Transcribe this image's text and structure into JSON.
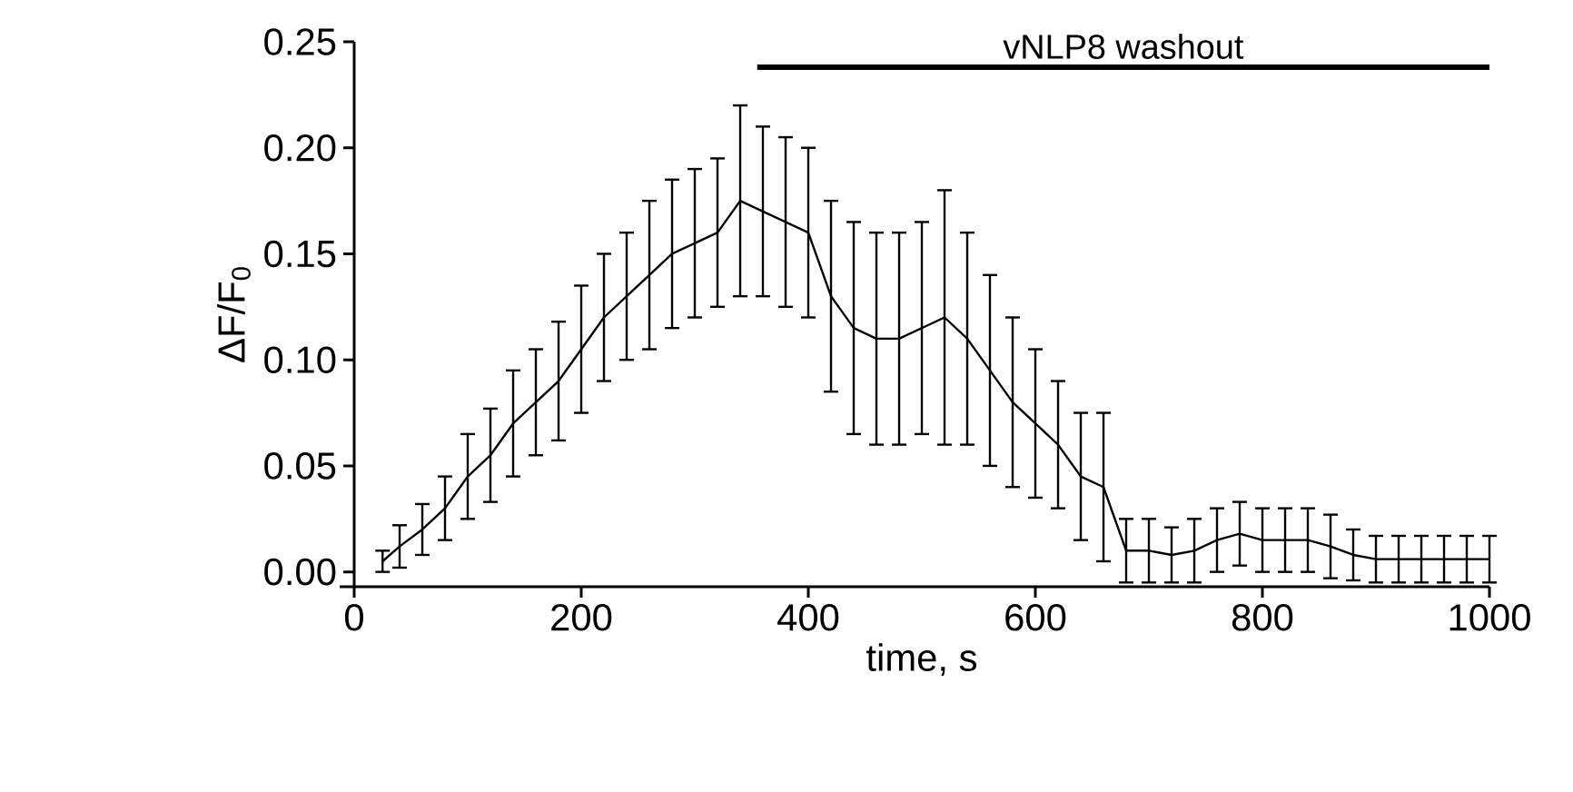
{
  "chart_data": {
    "type": "line",
    "xlabel": "time, s",
    "ylabel": "ΔF/F$_{0}$",
    "x": [
      25,
      40,
      60,
      80,
      100,
      120,
      140,
      160,
      180,
      200,
      220,
      240,
      260,
      280,
      300,
      320,
      340,
      360,
      380,
      400,
      420,
      440,
      460,
      480,
      500,
      520,
      540,
      560,
      580,
      600,
      620,
      640,
      660,
      680,
      700,
      720,
      740,
      760,
      780,
      800,
      820,
      840,
      860,
      880,
      900,
      920,
      940,
      960,
      980,
      1000
    ],
    "series": [
      {
        "color": "#000000",
        "values": [
          0.005,
          0.012,
          0.02,
          0.03,
          0.045,
          0.055,
          0.07,
          0.08,
          0.09,
          0.105,
          0.12,
          0.13,
          0.14,
          0.15,
          0.155,
          0.16,
          0.175,
          0.17,
          0.165,
          0.16,
          0.13,
          0.115,
          0.11,
          0.11,
          0.115,
          0.12,
          0.11,
          0.095,
          0.08,
          0.07,
          0.06,
          0.045,
          0.04,
          0.01,
          0.01,
          0.008,
          0.01,
          0.015,
          0.018,
          0.015,
          0.015,
          0.015,
          0.012,
          0.008,
          0.006,
          0.006,
          0.006,
          0.006,
          0.006,
          0.006
        ],
        "errors": [
          0.005,
          0.01,
          0.012,
          0.015,
          0.02,
          0.022,
          0.025,
          0.025,
          0.028,
          0.03,
          0.03,
          0.03,
          0.035,
          0.035,
          0.035,
          0.035,
          0.045,
          0.04,
          0.04,
          0.04,
          0.045,
          0.05,
          0.05,
          0.05,
          0.05,
          0.06,
          0.05,
          0.045,
          0.04,
          0.035,
          0.03,
          0.03,
          0.035,
          0.015,
          0.015,
          0.013,
          0.015,
          0.015,
          0.015,
          0.015,
          0.015,
          0.015,
          0.015,
          0.012,
          0.011,
          0.011,
          0.011,
          0.011,
          0.011,
          0.011
        ]
      },
      {
        "type": "line",
        "color": "#000000",
        "x": [
          355,
          1000
        ],
        "values": [
          0.238,
          0.238
        ]
      }
    ],
    "xlim": [
      0,
      1000
    ],
    "ylim": [
      -0.007,
      0.25
    ],
    "xticks": [
      0,
      200,
      400,
      600,
      800,
      1000
    ],
    "yticks": [
      {
        "value": 0,
        "label": "0.00"
      },
      {
        "value": 0.05,
        "label": "0.05"
      },
      {
        "value": 0.1,
        "label": "0.10"
      },
      {
        "value": 0.15,
        "label": "0.15"
      },
      {
        "value": 0.2,
        "label": "0.20"
      },
      {
        "value": 0.25,
        "label": "0.25"
      }
    ],
    "annotations": [
      {
        "text": "vNLP8 washout",
        "x": 677.5,
        "y": 0.24
      }
    ],
    "marker": "none",
    "line_style": "solid"
  }
}
